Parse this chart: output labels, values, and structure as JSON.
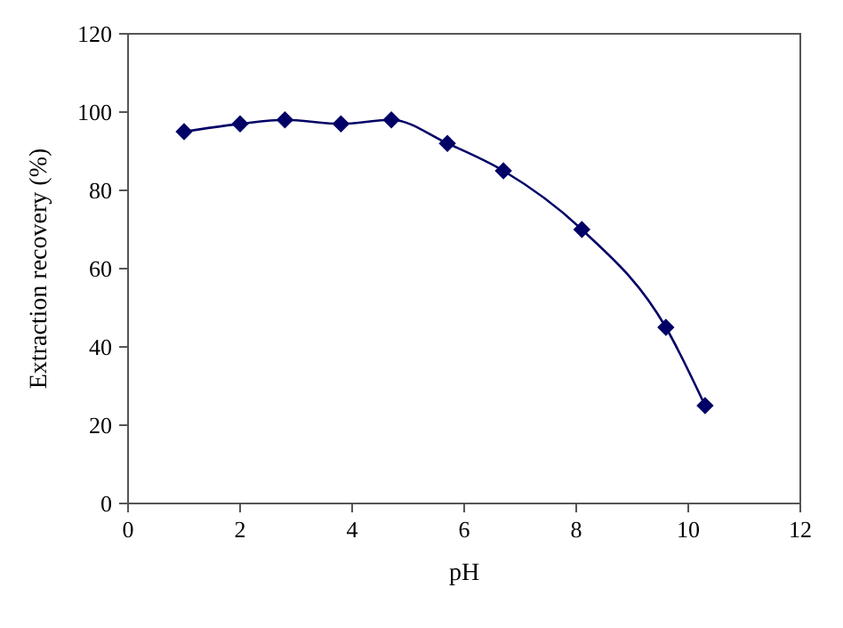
{
  "chart_data": {
    "type": "line",
    "xlabel": "pH",
    "ylabel": "Extraction recovery (%)",
    "x": [
      1,
      2,
      2.8,
      3.8,
      4.7,
      5.7,
      6.7,
      8.1,
      9.6,
      10.3
    ],
    "series": [
      {
        "color": "#000066",
        "values": [
          95,
          97,
          98,
          97,
          98,
          92,
          85,
          70,
          45,
          25
        ]
      }
    ],
    "xlim": [
      0,
      12
    ],
    "xticks": [
      0,
      2,
      4,
      6,
      8,
      10,
      12
    ],
    "ylim": [
      0,
      120
    ],
    "yticks": [
      0,
      20,
      40,
      60,
      80,
      100,
      120
    ],
    "marker": "diamond",
    "line_style": "solid"
  }
}
